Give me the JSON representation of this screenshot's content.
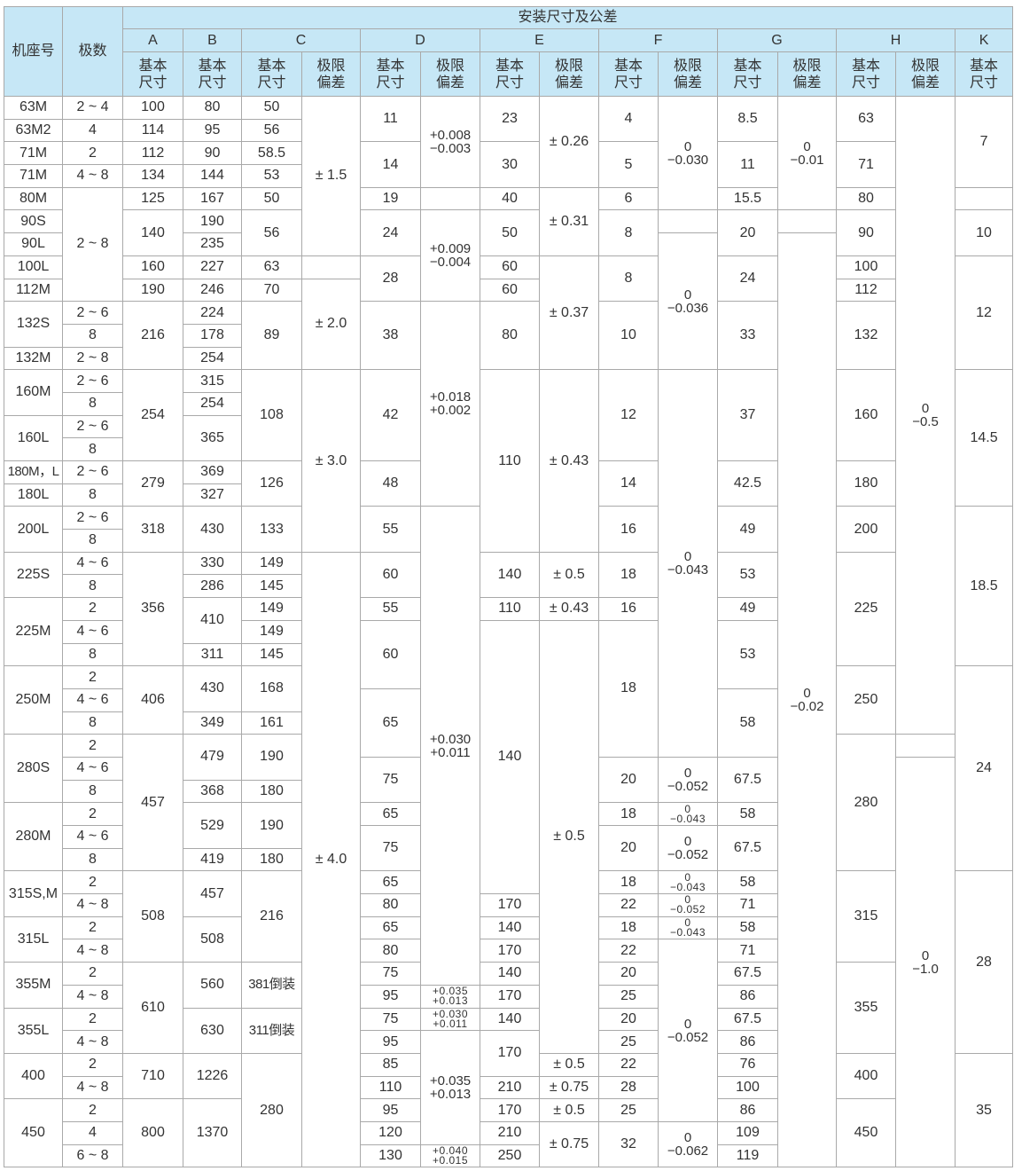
{
  "header": {
    "frame": "机座号",
    "poles": "极数",
    "title": "安装尺寸及公差",
    "groups": [
      "A",
      "B",
      "C",
      "D",
      "E",
      "F",
      "G",
      "H",
      "K"
    ],
    "basic": "基本\n尺寸",
    "tolerance": "极限\n偏差"
  },
  "colors": {
    "header_bg": "#c6e7f6",
    "border": "#a9a9a9",
    "text": "#333333"
  },
  "columns": {
    "frame": [
      [
        "63M",
        1
      ],
      [
        "63M2",
        1
      ],
      [
        "71M",
        1
      ],
      [
        "71M",
        1
      ],
      [
        "80M",
        1
      ],
      [
        "90S",
        1
      ],
      [
        "90L",
        1
      ],
      [
        "100L",
        1
      ],
      [
        "112M",
        1
      ],
      [
        "132S",
        2
      ],
      [
        "132M",
        1
      ],
      [
        "160M",
        2
      ],
      [
        "160L",
        2
      ],
      [
        "180M，L",
        1
      ],
      [
        "180L",
        1
      ],
      [
        "200L",
        2
      ],
      [
        "225S",
        2
      ],
      [
        "225M",
        3
      ],
      [
        "250M",
        3
      ],
      [
        "280S",
        3
      ],
      [
        "280M",
        3
      ],
      [
        "315S,M",
        2
      ],
      [
        "315L",
        2
      ],
      [
        "355M",
        2
      ],
      [
        "355L",
        2
      ],
      [
        "400",
        2
      ],
      [
        "450",
        3
      ]
    ],
    "poles": [
      [
        "2 ~ 4",
        1
      ],
      [
        "4",
        1
      ],
      [
        "2",
        1
      ],
      [
        "4 ~ 8",
        1
      ],
      [
        "2 ~ 8",
        5
      ],
      [
        "2 ~ 6",
        1
      ],
      [
        "8",
        1
      ],
      [
        "2 ~ 8",
        1
      ],
      [
        "2 ~ 6",
        1
      ],
      [
        "8",
        1
      ],
      [
        "2 ~ 6",
        1
      ],
      [
        "8",
        1
      ],
      [
        "2 ~ 6",
        1
      ],
      [
        "8",
        1
      ],
      [
        "2 ~ 6",
        1
      ],
      [
        "8",
        1
      ],
      [
        "4 ~ 6",
        1
      ],
      [
        "8",
        1
      ],
      [
        "2",
        1
      ],
      [
        "4 ~ 6",
        1
      ],
      [
        "8",
        1
      ],
      [
        "2",
        1
      ],
      [
        "4 ~ 6",
        1
      ],
      [
        "8",
        1
      ],
      [
        "2",
        1
      ],
      [
        "4 ~ 6",
        1
      ],
      [
        "8",
        1
      ],
      [
        "2",
        1
      ],
      [
        "4 ~ 6",
        1
      ],
      [
        "8",
        1
      ],
      [
        "2",
        1
      ],
      [
        "4 ~ 8",
        1
      ],
      [
        "2",
        1
      ],
      [
        "4 ~ 8",
        1
      ],
      [
        "2",
        1
      ],
      [
        "4 ~ 8",
        1
      ],
      [
        "2",
        1
      ],
      [
        "4 ~ 8",
        1
      ],
      [
        "2",
        1
      ],
      [
        "4 ~ 8",
        1
      ],
      [
        "2",
        1
      ],
      [
        "4",
        1
      ],
      [
        "6 ~ 8",
        1
      ]
    ],
    "A": [
      [
        "100",
        1
      ],
      [
        "114",
        1
      ],
      [
        "112",
        1
      ],
      [
        "134",
        1
      ],
      [
        "125",
        1
      ],
      [
        "140",
        2
      ],
      [
        "160",
        1
      ],
      [
        "190",
        1
      ],
      [
        "216",
        3
      ],
      [
        "254",
        4
      ],
      [
        "279",
        2
      ],
      [
        "318",
        2
      ],
      [
        "356",
        5
      ],
      [
        "406",
        3
      ],
      [
        "457",
        6
      ],
      [
        "508",
        4
      ],
      [
        "610",
        4
      ],
      [
        "710",
        2
      ],
      [
        "800",
        3
      ]
    ],
    "B": [
      [
        "80",
        1
      ],
      [
        "95",
        1
      ],
      [
        "90",
        1
      ],
      [
        "144",
        1
      ],
      [
        "167",
        1
      ],
      [
        "190",
        1
      ],
      [
        "235",
        1
      ],
      [
        "227",
        1
      ],
      [
        "246",
        1
      ],
      [
        "224",
        1
      ],
      [
        "178",
        1
      ],
      [
        "254",
        1
      ],
      [
        "315",
        1
      ],
      [
        "254",
        1
      ],
      [
        "365",
        2
      ],
      [
        "369",
        1
      ],
      [
        "327",
        1
      ],
      [
        "430",
        2
      ],
      [
        "330",
        1
      ],
      [
        "286",
        1
      ],
      [
        "410",
        2
      ],
      [
        "311",
        1
      ],
      [
        "430",
        2
      ],
      [
        "349",
        1
      ],
      [
        "479",
        2
      ],
      [
        "368",
        1
      ],
      [
        "529",
        2
      ],
      [
        "419",
        1
      ],
      [
        "457",
        2
      ],
      [
        "508",
        2
      ],
      [
        "560",
        2
      ],
      [
        "630",
        2
      ],
      [
        "1226",
        2
      ],
      [
        "1370",
        3
      ]
    ],
    "C_basic": [
      [
        "50",
        1
      ],
      [
        "56",
        1
      ],
      [
        "58.5",
        1
      ],
      [
        "53",
        1
      ],
      [
        "50",
        1
      ],
      [
        "56",
        2
      ],
      [
        "63",
        1
      ],
      [
        "70",
        1
      ],
      [
        "89",
        3
      ],
      [
        "108",
        4
      ],
      [
        "126",
        2
      ],
      [
        "133",
        2
      ],
      [
        "149",
        1
      ],
      [
        "145",
        1
      ],
      [
        "149",
        1
      ],
      [
        "149",
        1
      ],
      [
        "145",
        1
      ],
      [
        "168",
        2
      ],
      [
        "161",
        1
      ],
      [
        "190",
        2
      ],
      [
        "180",
        1
      ],
      [
        "190",
        2
      ],
      [
        "180",
        1
      ],
      [
        "216",
        4
      ],
      [
        "381倒装",
        2
      ],
      [
        "311倒装",
        2
      ],
      [
        "280",
        5
      ]
    ],
    "C_tol": [
      [
        "± 1.5",
        7
      ],
      [
        "",
        1
      ],
      [
        "± 2.0",
        4
      ],
      [
        "± 3.0",
        8
      ],
      [
        "± 4.0",
        27
      ]
    ],
    "D_basic": [
      [
        "11",
        2
      ],
      [
        "14",
        2
      ],
      [
        "19",
        1
      ],
      [
        "24",
        2
      ],
      [
        "28",
        2
      ],
      [
        "38",
        3
      ],
      [
        "42",
        4
      ],
      [
        "48",
        2
      ],
      [
        "55",
        2
      ],
      [
        "60",
        2
      ],
      [
        "55",
        1
      ],
      [
        "60",
        3
      ],
      [
        "65",
        3
      ],
      [
        "75",
        2
      ],
      [
        "65",
        1
      ],
      [
        "75",
        2
      ],
      [
        "65",
        1
      ],
      [
        "80",
        1
      ],
      [
        "65",
        1
      ],
      [
        "80",
        1
      ],
      [
        "75",
        1
      ],
      [
        "95",
        1
      ],
      [
        "75",
        1
      ],
      [
        "95",
        1
      ],
      [
        "85",
        1
      ],
      [
        "110",
        1
      ],
      [
        "95",
        1
      ],
      [
        "120",
        1
      ],
      [
        "130",
        1
      ]
    ],
    "D_tol": [
      [
        "+0.008\n−0.003",
        4
      ],
      [
        "",
        1
      ],
      [
        "+0.009\n−0.004",
        4
      ],
      [
        "+0.018\n+0.002",
        9
      ],
      [
        "+0.030\n+0.011",
        21
      ],
      [
        "+0.035\n+0.013",
        1
      ],
      [
        "+0.030\n+0.011",
        1
      ],
      [
        "+0.035\n+0.013",
        5
      ],
      [
        "+0.040\n+0.015",
        1
      ]
    ],
    "E_basic": [
      [
        "23",
        2
      ],
      [
        "30",
        2
      ],
      [
        "40",
        1
      ],
      [
        "50",
        2
      ],
      [
        "60",
        1
      ],
      [
        "60",
        1
      ],
      [
        "80",
        3
      ],
      [
        "110",
        8
      ],
      [
        "140",
        2
      ],
      [
        "110",
        1
      ],
      [
        "140",
        12
      ],
      [
        "170",
        1
      ],
      [
        "140",
        1
      ],
      [
        "170",
        1
      ],
      [
        "140",
        1
      ],
      [
        "170",
        1
      ],
      [
        "140",
        1
      ],
      [
        "170",
        2
      ],
      [
        "210",
        1
      ],
      [
        "170",
        1
      ],
      [
        "210",
        1
      ],
      [
        "250",
        1
      ]
    ],
    "E_tol": [
      [
        "± 0.26",
        4
      ],
      [
        "± 0.31",
        3
      ],
      [
        "± 0.37",
        5
      ],
      [
        "± 0.43",
        8
      ],
      [
        "± 0.5",
        2
      ],
      [
        "± 0.43",
        1
      ],
      [
        "± 0.5",
        19
      ],
      [
        "± 0.5",
        1
      ],
      [
        "± 0.75",
        1
      ],
      [
        "± 0.5",
        1
      ],
      [
        "± 0.75",
        2
      ]
    ],
    "F_basic": [
      [
        "4",
        2
      ],
      [
        "5",
        2
      ],
      [
        "6",
        1
      ],
      [
        "8",
        2
      ],
      [
        "8",
        2
      ],
      [
        "10",
        3
      ],
      [
        "12",
        4
      ],
      [
        "14",
        2
      ],
      [
        "16",
        2
      ],
      [
        "18",
        2
      ],
      [
        "16",
        1
      ],
      [
        "18",
        6
      ],
      [
        "20",
        2
      ],
      [
        "18",
        1
      ],
      [
        "20",
        2
      ],
      [
        "18",
        1
      ],
      [
        "22",
        1
      ],
      [
        "18",
        1
      ],
      [
        "22",
        1
      ],
      [
        "20",
        1
      ],
      [
        "25",
        1
      ],
      [
        "20",
        1
      ],
      [
        "25",
        1
      ],
      [
        "22",
        1
      ],
      [
        "28",
        1
      ],
      [
        "25",
        1
      ],
      [
        "32",
        2
      ]
    ],
    "F_tol": [
      [
        "0\n−0.030",
        5
      ],
      [
        "",
        1
      ],
      [
        "0\n−0.036",
        6
      ],
      [
        "0\n−0.043",
        17
      ],
      [
        "0\n−0.052",
        2
      ],
      [
        "0\n−0.043",
        1
      ],
      [
        "0\n−0.052",
        2
      ],
      [
        "0\n−0.043",
        1
      ],
      [
        "0\n−0.052",
        1
      ],
      [
        "0\n−0.043",
        1
      ],
      [
        "0\n−0.052",
        8
      ],
      [
        "0\n−0.062",
        2
      ]
    ],
    "G_basic": [
      [
        "8.5",
        2
      ],
      [
        "11",
        2
      ],
      [
        "15.5",
        1
      ],
      [
        "20",
        2
      ],
      [
        "24",
        2
      ],
      [
        "33",
        3
      ],
      [
        "37",
        4
      ],
      [
        "42.5",
        2
      ],
      [
        "49",
        2
      ],
      [
        "53",
        2
      ],
      [
        "49",
        1
      ],
      [
        "53",
        3
      ],
      [
        "58",
        3
      ],
      [
        "67.5",
        2
      ],
      [
        "58",
        1
      ],
      [
        "67.5",
        2
      ],
      [
        "58",
        1
      ],
      [
        "71",
        1
      ],
      [
        "58",
        1
      ],
      [
        "71",
        1
      ],
      [
        "67.5",
        1
      ],
      [
        "86",
        1
      ],
      [
        "67.5",
        1
      ],
      [
        "86",
        1
      ],
      [
        "76",
        1
      ],
      [
        "100",
        1
      ],
      [
        "86",
        1
      ],
      [
        "109",
        1
      ],
      [
        "119",
        1
      ]
    ],
    "G_tol": [
      [
        "0\n−0.01",
        5
      ],
      [
        "",
        1
      ],
      [
        "0\n−0.02",
        41
      ]
    ],
    "H_basic": [
      [
        "63",
        2
      ],
      [
        "71",
        2
      ],
      [
        "80",
        1
      ],
      [
        "90",
        2
      ],
      [
        "100",
        1
      ],
      [
        "112",
        1
      ],
      [
        "132",
        3
      ],
      [
        "160",
        4
      ],
      [
        "180",
        2
      ],
      [
        "200",
        2
      ],
      [
        "225",
        5
      ],
      [
        "250",
        3
      ],
      [
        "280",
        6
      ],
      [
        "315",
        4
      ],
      [
        "355",
        4
      ],
      [
        "400",
        2
      ],
      [
        "450",
        3
      ]
    ],
    "H_tol": [
      [
        "0\n−0.5",
        28
      ],
      [
        "",
        1
      ],
      [
        "0\n−1.0",
        18
      ]
    ],
    "K_basic": [
      [
        "7",
        4
      ],
      [
        "",
        1
      ],
      [
        "10",
        2
      ],
      [
        "12",
        5
      ],
      [
        "14.5",
        6
      ],
      [
        "18.5",
        7
      ],
      [
        "24",
        9
      ],
      [
        "28",
        8
      ],
      [
        "35",
        5
      ]
    ]
  }
}
